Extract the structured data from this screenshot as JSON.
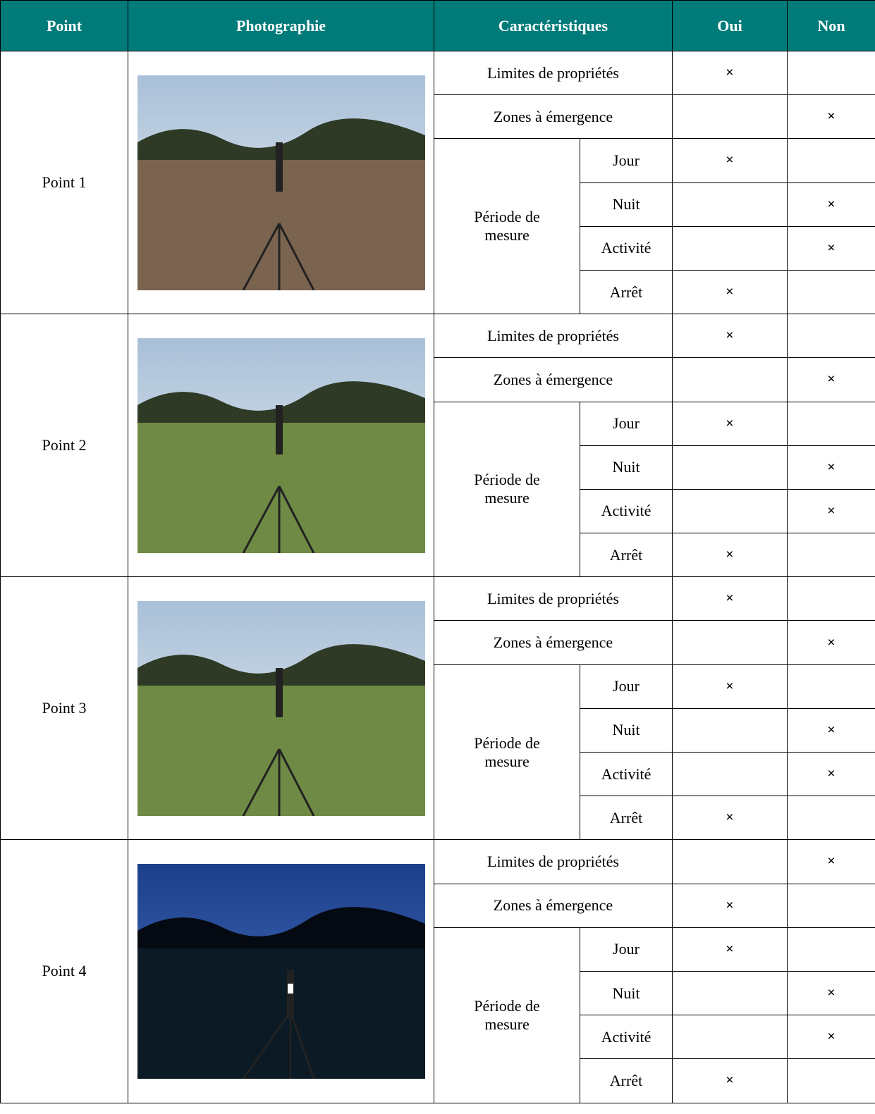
{
  "header": [
    "Point",
    "Photographie",
    "Caractéristiques",
    "Oui",
    "Non"
  ],
  "points": [
    {
      "label": "Point 1",
      "rows": [
        {
          "label": "Limites de propriétés",
          "oui": "×"
        },
        {
          "label": "Zones à émergence",
          "non": "×"
        }
      ],
      "period": {
        "label": "Période de mesure",
        "rows": [
          {
            "label": "Jour",
            "oui": "×"
          },
          {
            "label": "Nuit",
            "non": "×"
          },
          {
            "label": "Activité",
            "non": "×"
          },
          {
            "label": "Arrêt",
            "oui": "×"
          }
        ]
      }
    },
    {
      "label": "Point 2",
      "rows": [
        {
          "label": "Limites de propriétés",
          "oui": "×"
        },
        {
          "label": "Zones à émergence",
          "non": "×"
        }
      ],
      "period": {
        "label": "Période de mesure",
        "rows": [
          {
            "label": "Jour",
            "oui": "×"
          },
          {
            "label": "Nuit",
            "non": "×"
          },
          {
            "label": "Activité",
            "non": "×"
          },
          {
            "label": "Arrêt",
            "oui": "×"
          }
        ]
      }
    },
    {
      "label": "Point 3",
      "rows": [
        {
          "label": "Limites de propriétés",
          "oui": "×"
        },
        {
          "label": "Zones à émergence",
          "non": "×"
        }
      ],
      "period": {
        "label": "Période de mesure",
        "rows": [
          {
            "label": "Jour",
            "oui": "×"
          },
          {
            "label": "Nuit",
            "non": "×"
          },
          {
            "label": "Activité",
            "non": "×"
          },
          {
            "label": "Arrêt",
            "oui": "×"
          }
        ]
      }
    },
    {
      "label": "Point 4",
      "rows": [
        {
          "label": "Limites de propriétés",
          "non": "×"
        },
        {
          "label": "Zones à émergence",
          "oui": "×"
        }
      ],
      "period": {
        "label": "Période de mesure",
        "rows": [
          {
            "label": "Jour",
            "oui": "×"
          },
          {
            "label": "Nuit",
            "non": "×"
          },
          {
            "label": "Activité",
            "non": "×"
          },
          {
            "label": "Arrêt",
            "oui": "×"
          }
        ]
      }
    }
  ]
}
